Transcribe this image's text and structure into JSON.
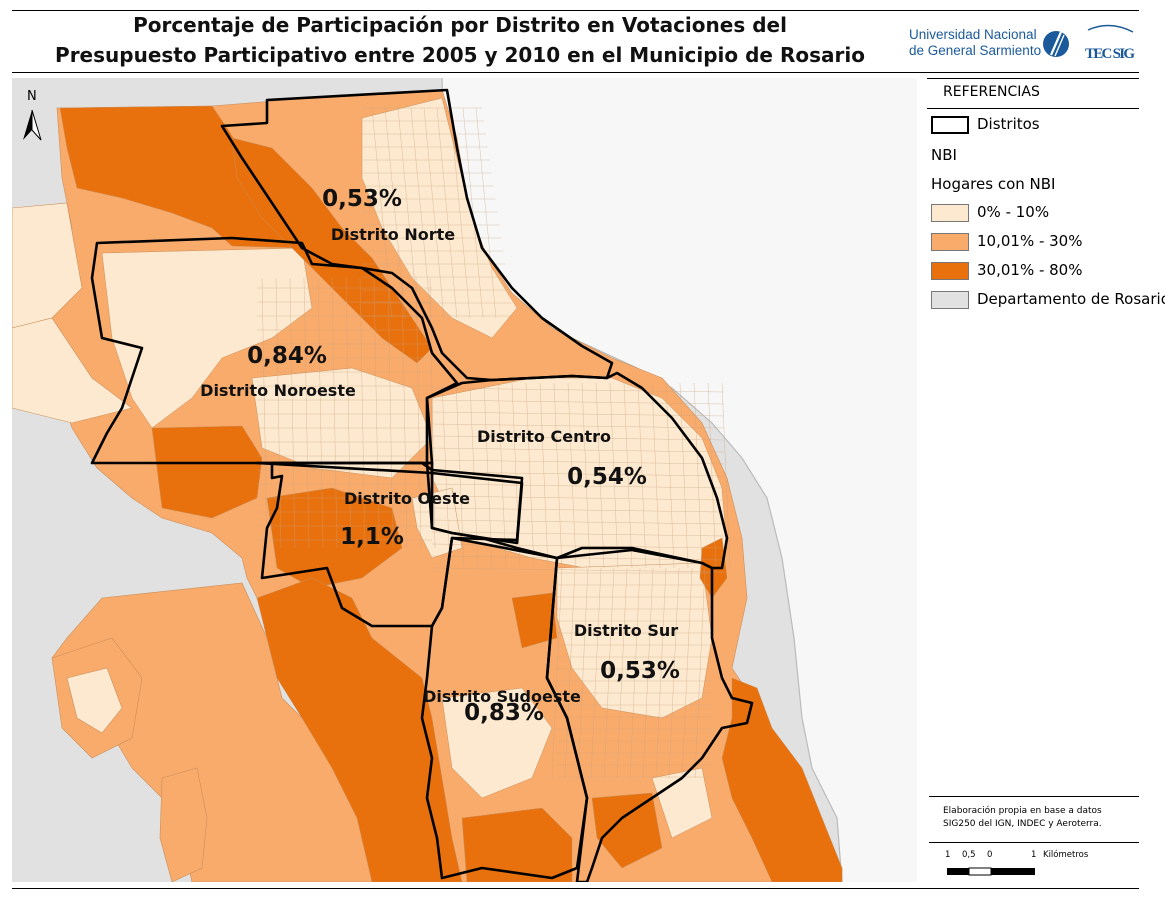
{
  "title": {
    "line1": "Porcentaje de Participación por Distrito en Votaciones del",
    "line2": "Presupuesto Participativo entre 2005 y 2010 en el Municipio de Rosario"
  },
  "logos": {
    "university_line1": "Universidad Nacional",
    "university_line2": "de General Sarmiento",
    "tecsig": "TEC SIG"
  },
  "north_arrow": "N",
  "districts": [
    {
      "name": "Distrito Norte",
      "participation": "0,53%"
    },
    {
      "name": "Distrito Noroeste",
      "participation": "0,84%"
    },
    {
      "name": "Distrito Centro",
      "participation": "0,54%"
    },
    {
      "name": "Distrito Oeste",
      "participation": "1,1%"
    },
    {
      "name": "Distrito Sur",
      "participation": "0,53%"
    },
    {
      "name": "Distrito Sudoeste",
      "participation": "0,83%"
    }
  ],
  "legend": {
    "header": "REFERENCIAS",
    "districts_label": "Distritos",
    "nbi_label": "NBI",
    "households_label": "Hogares con NBI",
    "classes": [
      {
        "label": "0% - 10%",
        "color": "#fde9cf"
      },
      {
        "label": "10,01% - 30%",
        "color": "#f9ab6c"
      },
      {
        "label": "30,01% - 80%",
        "color": "#e8710e"
      }
    ],
    "department": {
      "label": "Departamento de Rosario",
      "color": "#e1e1e1"
    }
  },
  "credits": {
    "line1": "Elaboración propia en base a datos",
    "line2": "SIG250 del IGN, INDEC y Aeroterra."
  },
  "scale_bar": {
    "ticks": [
      "1",
      "0,5",
      "0",
      "1"
    ],
    "unit": "Kilómetros"
  },
  "colors": {
    "river": "#f7f7f7",
    "background_land": "#e1e1e1",
    "district_border": "#000000"
  }
}
